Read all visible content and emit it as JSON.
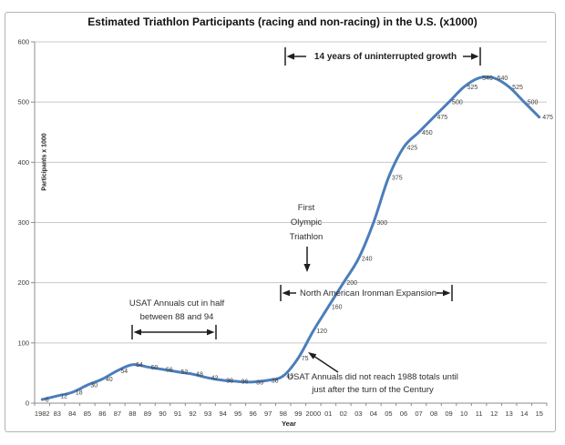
{
  "window": {
    "background": "#ffffff",
    "border_color": "#b3b3b3"
  },
  "chart_data": {
    "type": "line",
    "title": "Estimated Triathlon Participants (racing and non-racing) in the U.S. (x1000)",
    "xlabel": "Year",
    "ylabel": "Participants x 1000",
    "categories": [
      "1982",
      "83",
      "84",
      "85",
      "86",
      "87",
      "88",
      "89",
      "90",
      "91",
      "92",
      "93",
      "94",
      "95",
      "96",
      "97",
      "98",
      "99",
      "2000",
      "01",
      "02",
      "03",
      "04",
      "05",
      "06",
      "07",
      "08",
      "09",
      "10",
      "11",
      "12",
      "13",
      "14",
      "15"
    ],
    "values": [
      6,
      12,
      18,
      30,
      40,
      54,
      64,
      60,
      56,
      52,
      48,
      42,
      38,
      36,
      35,
      38,
      45,
      75,
      120,
      160,
      200,
      240,
      300,
      375,
      425,
      450,
      475,
      500,
      525,
      540,
      540,
      525,
      500,
      475
    ],
    "ylim": [
      0,
      600
    ],
    "yticks": [
      0,
      100,
      200,
      300,
      400,
      500,
      600
    ],
    "grid": true,
    "legend": false,
    "smooth": true,
    "data_labels": true,
    "line_color": "#4a7ebb",
    "grid_color": "#c8c8c8",
    "axis_color": "#8c8c8c"
  },
  "annotations": {
    "growth": "14 years of uninterrupted growth",
    "usat_cut": "USAT Annuals cut in half between 88 and 94",
    "olympic": "First Olympic Triathlon",
    "ironman": "North American Ironman Expansion",
    "usat_reach": "USAT Annuals did not reach 1988 totals until just after the turn of the Century"
  }
}
